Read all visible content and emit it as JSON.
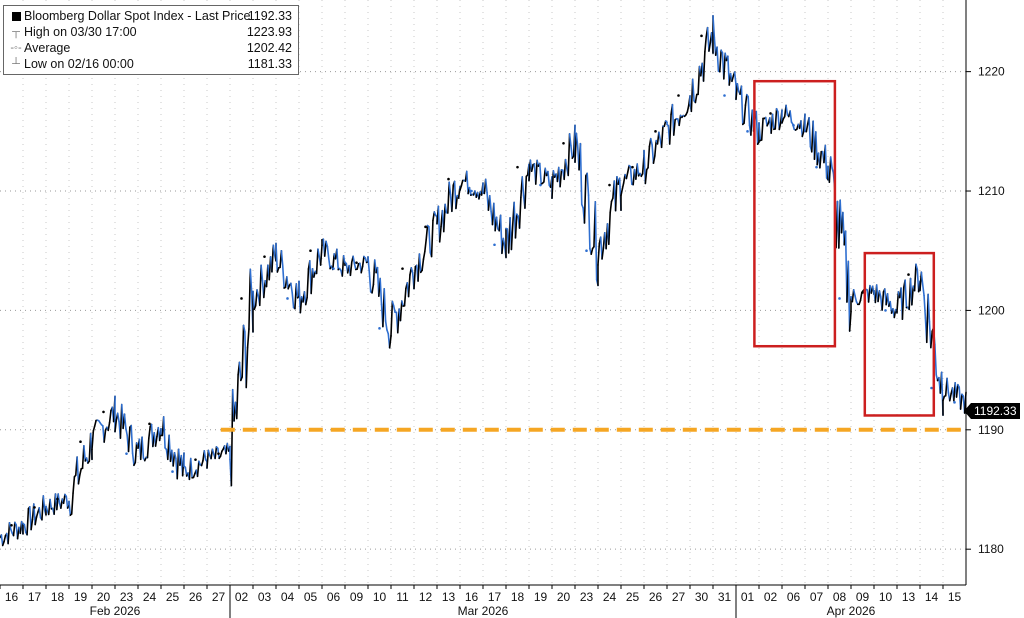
{
  "legend": {
    "title": "Bloomberg Dollar Spot Index - Last Price",
    "last_value": "1192.33",
    "high_label": "High on 03/30 17:00",
    "high_value": "1223.93",
    "avg_label": "Average",
    "avg_value": "1202.42",
    "low_label": "Low on 02/16 00:00",
    "low_value": "1181.33"
  },
  "price_tag": "1192.33",
  "colors": {
    "up": "#000000",
    "down": "#2f6fd0",
    "support_line": "#f5a623",
    "highlight_box": "#cc1f1f",
    "grid": "#9a9a9a"
  },
  "chart_data": {
    "type": "line",
    "title": "Bloomberg Dollar Spot Index - Last Price",
    "ylim": [
      1177,
      1226
    ],
    "y_ticks": [
      1180,
      1190,
      1200,
      1210,
      1220
    ],
    "y_axis_side": "right",
    "x_tick_labels": [
      "16",
      "17",
      "18",
      "19",
      "20",
      "23",
      "24",
      "25",
      "26",
      "27",
      "02",
      "03",
      "04",
      "05",
      "06",
      "09",
      "10",
      "11",
      "12",
      "13",
      "16",
      "17",
      "18",
      "19",
      "20",
      "23",
      "24",
      "25",
      "26",
      "27",
      "30",
      "31",
      "01",
      "02",
      "06",
      "07",
      "08",
      "09",
      "10",
      "13",
      "14",
      "15"
    ],
    "month_labels": [
      {
        "label": "Feb 2026",
        "start": 0,
        "end": 9
      },
      {
        "label": "Mar 2026",
        "start": 10,
        "end": 31
      },
      {
        "label": "Apr 2026",
        "start": 32,
        "end": 41
      }
    ],
    "series": [
      {
        "values": [
          1182.0,
          1183.5,
          1184.2,
          1189.0,
          1191.5,
          1188.0,
          1190.5,
          1186.5,
          1187.5,
          1188.0,
          1201.0,
          1204.5,
          1201.0,
          1205.0,
          1203.5,
          1204.0,
          1198.5,
          1203.5,
          1207.0,
          1211.0,
          1210.0,
          1205.5,
          1212.0,
          1210.5,
          1214.0,
          1205.0,
          1210.5,
          1212.0,
          1215.0,
          1218.0,
          1223.0,
          1218.0,
          1215.0,
          1216.5,
          1215.5,
          1212.0,
          1201.0,
          1201.5,
          1200.0,
          1203.0,
          1193.5,
          1192.3
        ]
      }
    ],
    "reference_line": {
      "y": 1190.0,
      "x_from_index": 9.6,
      "style": "dashed"
    },
    "highlight_boxes": [
      {
        "x_from_index": 32.8,
        "x_to_index": 36.3,
        "y_from": 1197.0,
        "y_to": 1219.2
      },
      {
        "x_from_index": 37.6,
        "x_to_index": 40.6,
        "y_from": 1191.2,
        "y_to": 1204.8
      }
    ],
    "grid": true,
    "legend_position": "top-left"
  }
}
